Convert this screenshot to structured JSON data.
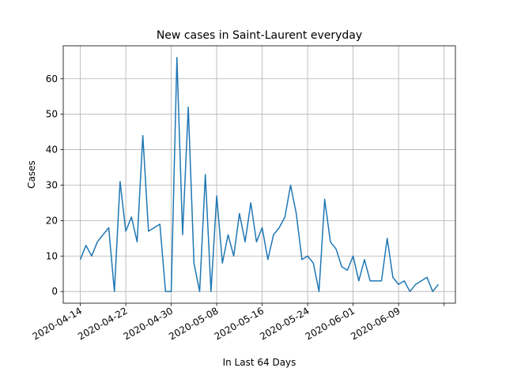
{
  "chart_data": {
    "type": "line",
    "title": "New cases in Saint-Laurent everyday",
    "xlabel": "In Last 64 Days",
    "ylabel": "Cases",
    "x": [
      "2020-04-14",
      "2020-04-15",
      "2020-04-16",
      "2020-04-17",
      "2020-04-18",
      "2020-04-19",
      "2020-04-20",
      "2020-04-21",
      "2020-04-22",
      "2020-04-23",
      "2020-04-24",
      "2020-04-25",
      "2020-04-26",
      "2020-04-27",
      "2020-04-28",
      "2020-04-29",
      "2020-04-30",
      "2020-05-01",
      "2020-05-02",
      "2020-05-03",
      "2020-05-04",
      "2020-05-05",
      "2020-05-06",
      "2020-05-07",
      "2020-05-08",
      "2020-05-09",
      "2020-05-10",
      "2020-05-11",
      "2020-05-12",
      "2020-05-13",
      "2020-05-14",
      "2020-05-15",
      "2020-05-16",
      "2020-05-17",
      "2020-05-18",
      "2020-05-19",
      "2020-05-20",
      "2020-05-21",
      "2020-05-22",
      "2020-05-23",
      "2020-05-24",
      "2020-05-25",
      "2020-05-26",
      "2020-05-27",
      "2020-05-28",
      "2020-05-29",
      "2020-05-30",
      "2020-05-31",
      "2020-06-01",
      "2020-06-02",
      "2020-06-03",
      "2020-06-04",
      "2020-06-05",
      "2020-06-06",
      "2020-06-07",
      "2020-06-08",
      "2020-06-09",
      "2020-06-10",
      "2020-06-11",
      "2020-06-12",
      "2020-06-13",
      "2020-06-14",
      "2020-06-15",
      "2020-06-16"
    ],
    "series": [
      {
        "name": "Cases",
        "color": "#1f77b4",
        "values": [
          9,
          13,
          10,
          14,
          16,
          18,
          0,
          31,
          17,
          21,
          14,
          44,
          17,
          18,
          19,
          0,
          0,
          66,
          16,
          52,
          8,
          0,
          33,
          0,
          27,
          8,
          16,
          10,
          22,
          14,
          25,
          14,
          18,
          9,
          16,
          18,
          21,
          30,
          22,
          9,
          10,
          8,
          0,
          26,
          14,
          12,
          7,
          6,
          10,
          3,
          9,
          3,
          3,
          3,
          15,
          4,
          2,
          3,
          0,
          2,
          3,
          4,
          0,
          2
        ]
      }
    ],
    "xlim": [
      "2020-04-11",
      "2020-06-19"
    ],
    "xticks": [
      "2020-04-14",
      "2020-04-22",
      "2020-04-30",
      "2020-05-08",
      "2020-05-16",
      "2020-05-24",
      "2020-06-01",
      "2020-06-09",
      {
        "value": "2020-06-17"
      }
    ],
    "ylim": [
      -3.3,
      69.3
    ],
    "yticks": [
      0,
      10,
      20,
      30,
      40,
      50,
      60
    ],
    "grid": true
  }
}
